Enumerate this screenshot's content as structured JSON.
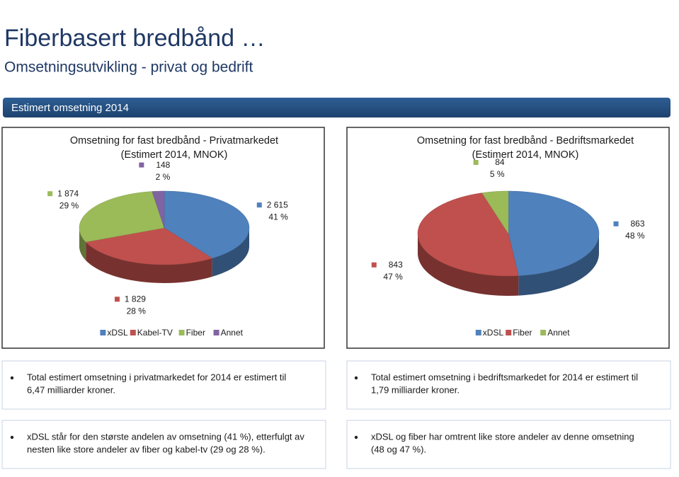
{
  "header": {
    "title": "Fiberbasert bredbånd …",
    "subtitle": "Omsetningsutvikling  - privat og bedrift",
    "banner": "Estimert omsetning 2014"
  },
  "chart_data": [
    {
      "type": "pie",
      "title": "Omsetning for fast bredbånd - Privatmarkedet",
      "subtitle": "(Estimert 2014, MNOK)",
      "categories": [
        "xDSL",
        "Kabel-TV",
        "Fiber",
        "Annet"
      ],
      "values": [
        2615,
        1829,
        1874,
        148
      ],
      "value_labels": [
        "2 615",
        "1 829",
        "1 874",
        "148"
      ],
      "percents": [
        41,
        28,
        29,
        2
      ],
      "percent_labels": [
        "41 %",
        "28 %",
        "29 %",
        "2 %"
      ],
      "colors": [
        "#4f81bd",
        "#c0504d",
        "#9bbb59",
        "#8064a2"
      ]
    },
    {
      "type": "pie",
      "title": "Omsetning for fast bredbånd - Bedriftsmarkedet",
      "subtitle": "(Estimert 2014, MNOK)",
      "categories": [
        "xDSL",
        "Fiber",
        "Annet"
      ],
      "values": [
        863,
        843,
        84
      ],
      "percents": [
        48,
        47,
        5
      ],
      "percent_labels": [
        "48 %",
        "47 %",
        "5 %"
      ],
      "colors": [
        "#4f81bd",
        "#c0504d",
        "#9bbb59"
      ]
    }
  ],
  "notes": [
    [
      "Total estimert omsetning i privatmarkedet for 2014 er estimert til",
      "6,47 milliarder kroner."
    ],
    [
      "Total estimert omsetning i bedriftsmarkedet for 2014 er estimert til",
      "1,79 milliarder kroner."
    ],
    [
      "xDSL står for den største andelen av omsetning (41 %), etterfulgt av",
      "nesten like store andeler av fiber og kabel-tv (29 og 28 %)."
    ],
    [
      "xDSL og fiber har omtrent like store andeler av denne omsetning",
      "(48 og 47 %)."
    ]
  ]
}
